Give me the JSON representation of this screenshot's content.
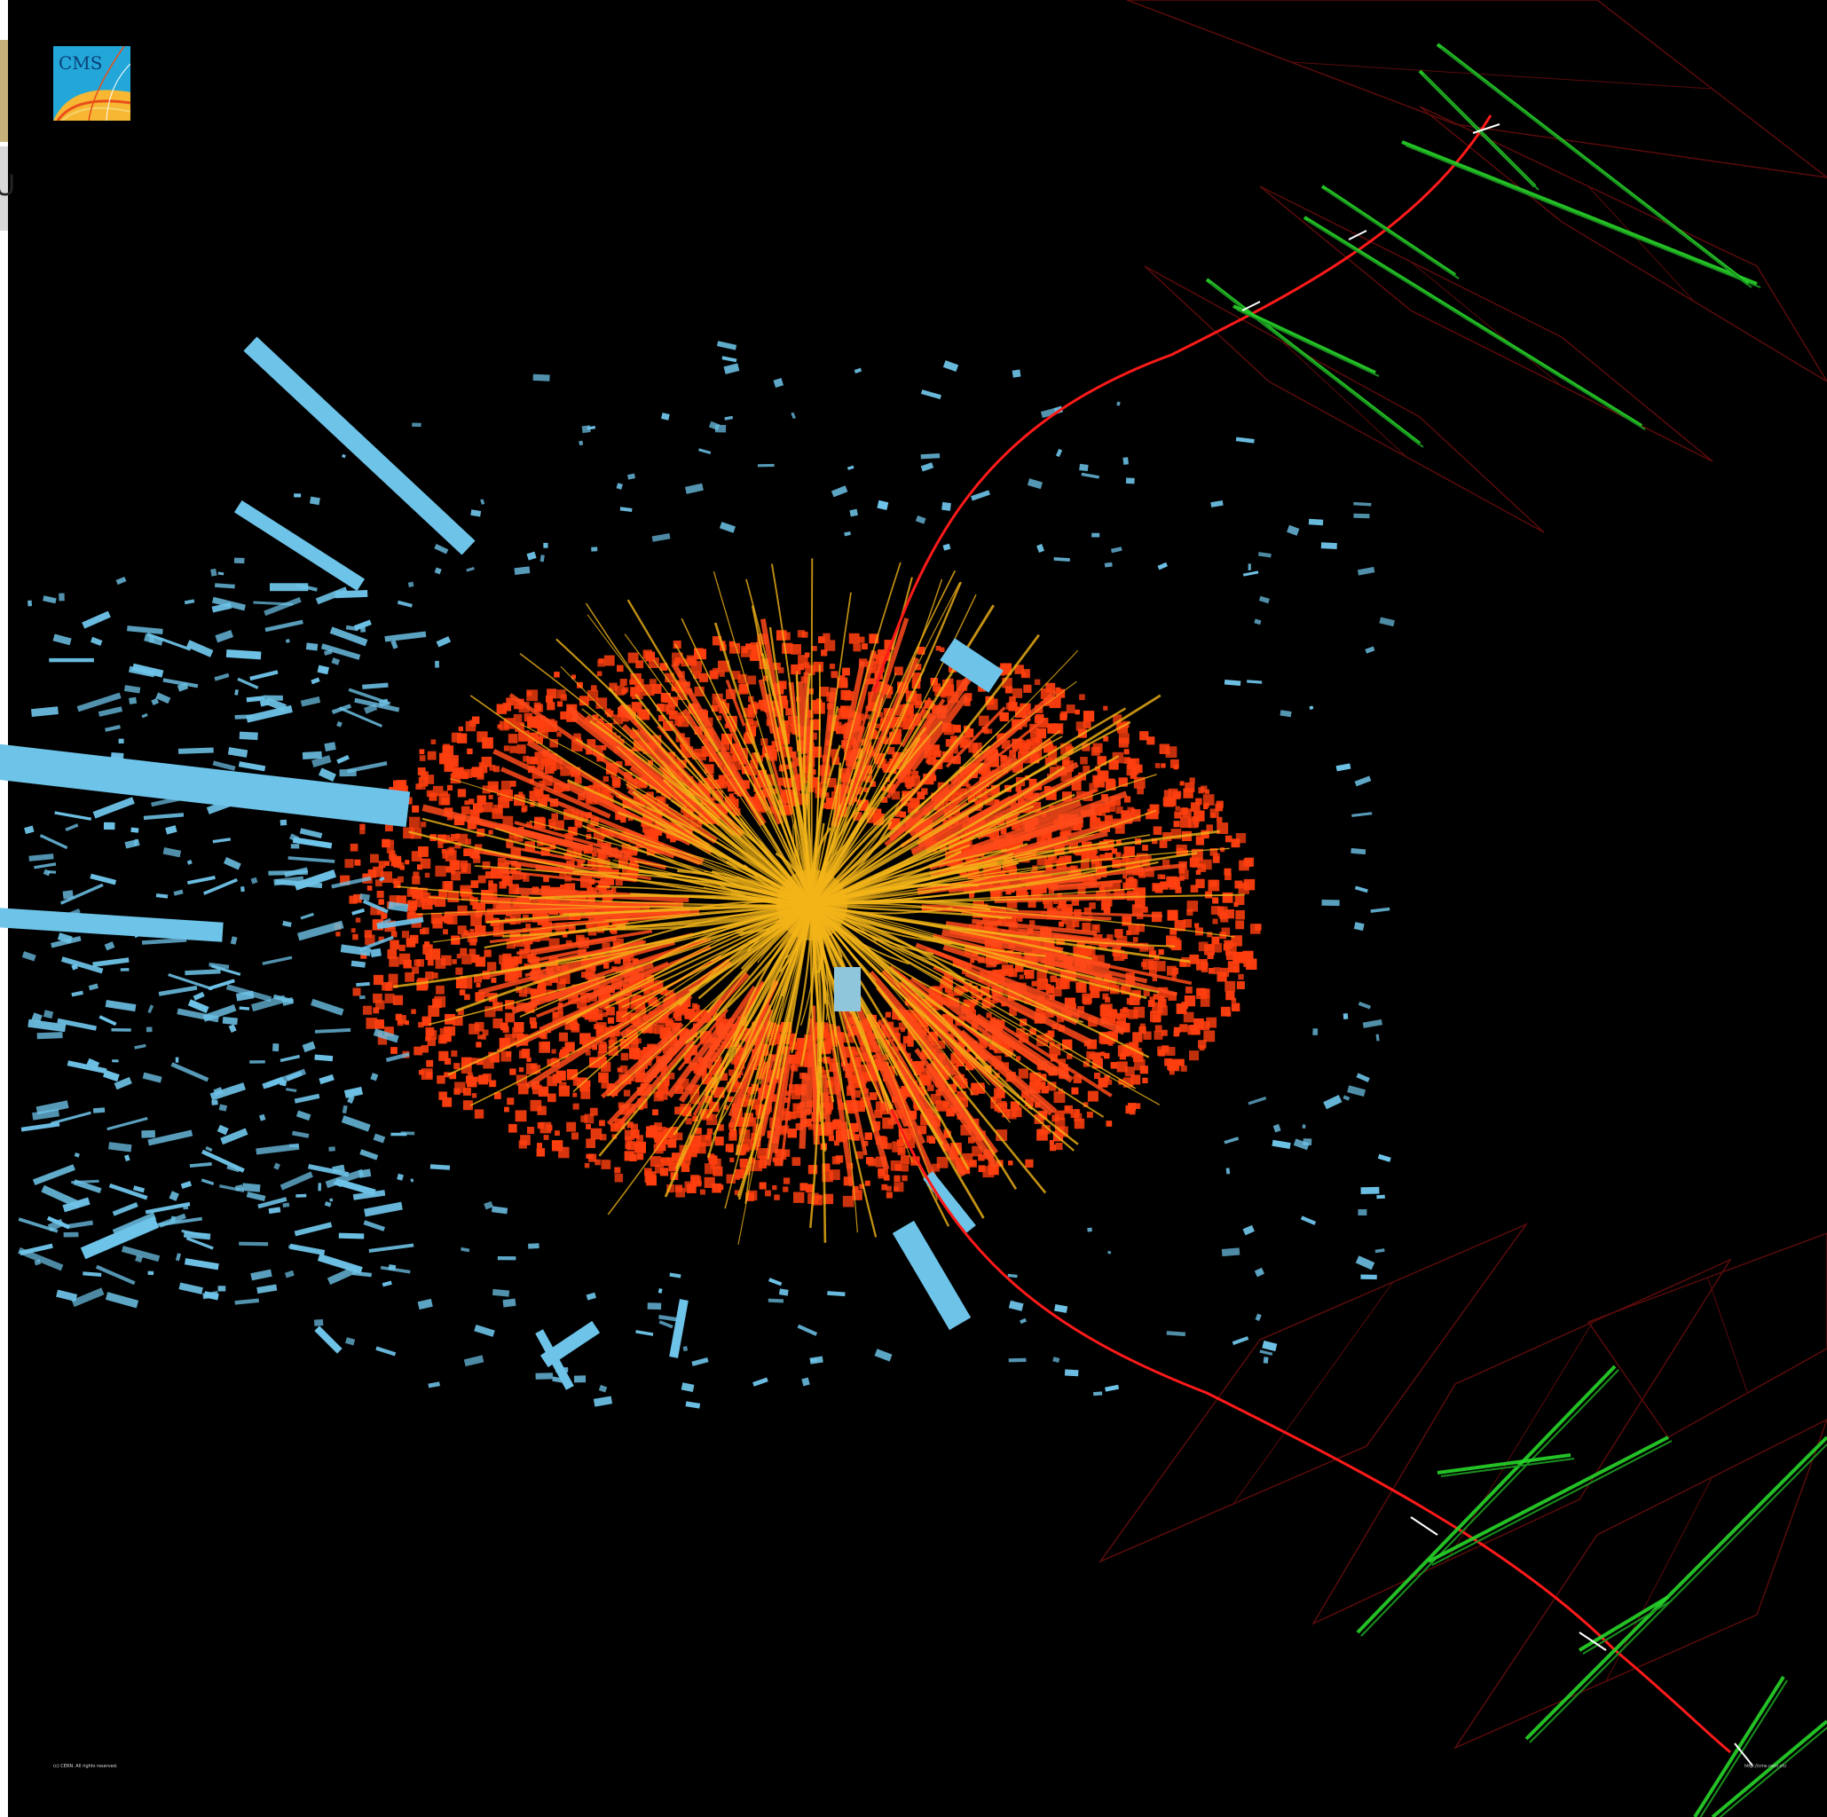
{
  "logo": {
    "name": "CMS",
    "icon": "cms-experiment-logo"
  },
  "footer": {
    "copyright": "(c) CERN. All rights reserved.",
    "url": "http://cms.cern.ch/"
  },
  "colors": {
    "background": "#000000",
    "hadronic_towers": "#6ec3e8",
    "ecal_deposits": "#ff3f0f",
    "tracks": "#f2b418",
    "muon_track": "#ff1a1a",
    "muon_segments": "#27d62a",
    "muon_chambers": "#5a0b0b"
  }
}
